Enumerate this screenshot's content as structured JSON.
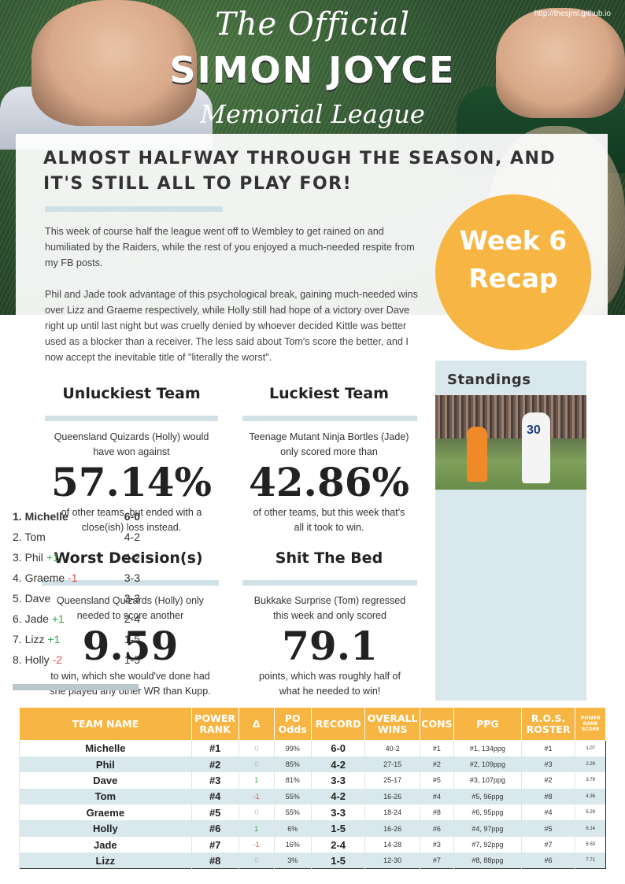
{
  "header": {
    "url": "http://thesjml.github.io",
    "title_top": "The Official",
    "title_main": "SIMON JOYCE",
    "title_bottom": "Memorial League"
  },
  "headline": "Almost halfway through the season, and it's still all to play for!",
  "intro": [
    "This week of course half the league went off to Wembley to get rained on and humiliated by the Raiders, while the rest of you enjoyed a much-needed respite from my FB posts.",
    "Phil and Jade took advantage of this psychological break, gaining much-needed wins over Lizz and Graeme respectively, while Holly still had hope of a victory over Dave right up until last night but was cruelly denied by whoever decided Kittle was better used as a blocker than a receiver. The less said about Tom's score the better, and I now accept the inevitable title of \"literally the worst\"."
  ],
  "badge": {
    "line1": "Week 6",
    "line2": "Recap",
    "color": "#f7b643"
  },
  "stats": {
    "unluckiest": {
      "title": "Unluckiest Team",
      "pre": "Queensland Quizards (Holly) would have won against",
      "value": "57.14%",
      "post": "of other teams, but ended with a close(ish) loss instead."
    },
    "luckiest": {
      "title": "Luckiest Team",
      "pre": "Teenage Mutant Ninja Bortles (Jade) only scored more than",
      "value": "42.86%",
      "post": "of other teams, but this week that's all it took to win."
    },
    "worst": {
      "title": "Worst Decision(s)",
      "pre": "Queensland Quizards (Holly) only needed to score another",
      "value": "9.59",
      "post": "to win, which she would've done had she played any other WR than Kupp."
    },
    "shit": {
      "title": "Shit The Bed",
      "pre": "Bukkake Surprise (Tom) regressed this week and only scored",
      "value": "79.1",
      "post": "points, which was roughly half of what he needed to win!"
    }
  },
  "standings": {
    "title": "Standings",
    "photo_number": "30",
    "rows": [
      {
        "pos": "1. Michelle",
        "move": "",
        "dir": "",
        "record": "6-0"
      },
      {
        "pos": "2. Tom",
        "move": "",
        "dir": "",
        "record": "4-2"
      },
      {
        "pos": "3. Phil",
        "move": "+1",
        "dir": "up",
        "record": "4-2"
      },
      {
        "pos": "4. Graeme",
        "move": "-1",
        "dir": "down",
        "record": "3-3"
      },
      {
        "pos": "5. Dave",
        "move": "",
        "dir": "",
        "record": "3-3"
      },
      {
        "pos": "6. Jade",
        "move": "+1",
        "dir": "up",
        "record": "2-4"
      },
      {
        "pos": "7. Lizz",
        "move": "+1",
        "dir": "up",
        "record": "1-5"
      },
      {
        "pos": "8. Holly",
        "move": "-2",
        "dir": "down",
        "record": "1-5"
      }
    ]
  },
  "table": {
    "headers": [
      "TEAM NAME",
      "POWER RANK",
      "Δ",
      "PO Odds",
      "RECORD",
      "OVERALL WINS",
      "CONS",
      "PPG",
      "R.O.S. ROSTER",
      "POWER RANK SCORE"
    ],
    "rows": [
      [
        "Michelle",
        "#1",
        "0",
        "99%",
        "6-0",
        "40-2",
        "#1",
        "#1, 134ppg",
        "#1",
        "1.07"
      ],
      [
        "Phil",
        "#2",
        "0",
        "85%",
        "4-2",
        "27-15",
        "#2",
        "#2, 109ppg",
        "#3",
        "2.29"
      ],
      [
        "Dave",
        "#3",
        "1",
        "81%",
        "3-3",
        "25-17",
        "#5",
        "#3, 107ppg",
        "#2",
        "3.79"
      ],
      [
        "Tom",
        "#4",
        "-1",
        "55%",
        "4-2",
        "16-26",
        "#4",
        "#5, 96ppg",
        "#8",
        "4.36"
      ],
      [
        "Graeme",
        "#5",
        "0",
        "55%",
        "3-3",
        "18-24",
        "#8",
        "#6, 95ppg",
        "#4",
        "5.29"
      ],
      [
        "Holly",
        "#6",
        "1",
        "6%",
        "1-5",
        "16-26",
        "#6",
        "#4, 97ppg",
        "#5",
        "6.14"
      ],
      [
        "Jade",
        "#7",
        "-1",
        "16%",
        "2-4",
        "14-28",
        "#3",
        "#7, 92ppg",
        "#7",
        "6.50"
      ],
      [
        "Lizz",
        "#8",
        "0",
        "3%",
        "1-5",
        "12-30",
        "#7",
        "#8, 88ppg",
        "#6",
        "7.71"
      ]
    ]
  }
}
